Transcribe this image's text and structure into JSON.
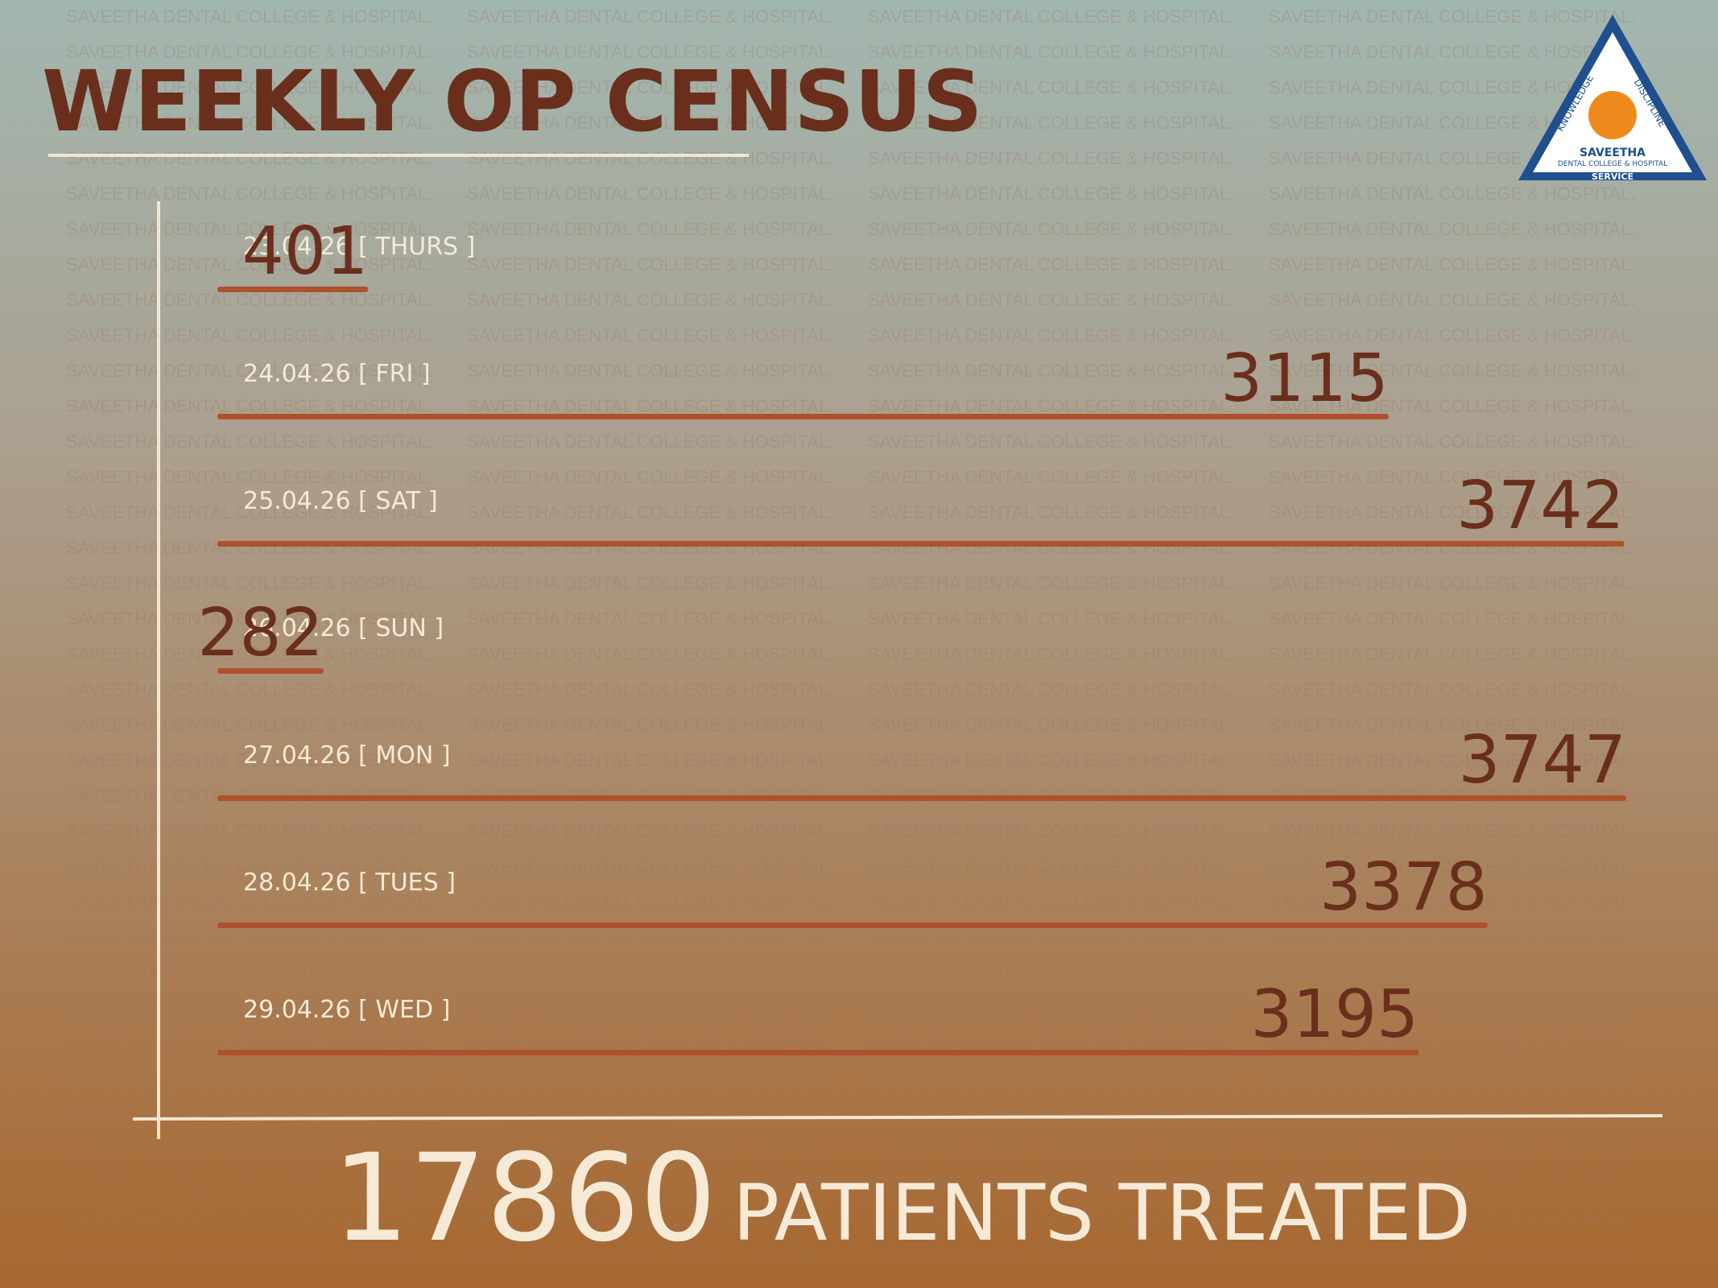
{
  "chart_data": {
    "type": "bar",
    "orientation": "horizontal",
    "title": "WEEKLY OP CENSUS",
    "categories": [
      "23.04.26 [ THURS ]",
      "24.04.26 [ FRI ]",
      "25.04.26 [ SAT ]",
      "26.04.26 [ SUN ]",
      "27.04.26 [ MON ]",
      "28.04.26 [ TUES ]",
      "29.04.26 [ WED ]"
    ],
    "values": [
      401,
      3115,
      3742,
      282,
      3747,
      3378,
      3195
    ],
    "color": "#b0512d",
    "total": 17860,
    "total_label": "PATIENTS TREATED"
  },
  "watermark": "SAVEETHA DENTAL COLLEGE & HOSPITAL.",
  "logo": {
    "left": "KNOWLEDGE",
    "right": "DISCIPLINE",
    "name": "SAVEETHA",
    "subname": "DENTAL COLLEGE & HOSPITAL",
    "bottom": "SERVICE"
  }
}
